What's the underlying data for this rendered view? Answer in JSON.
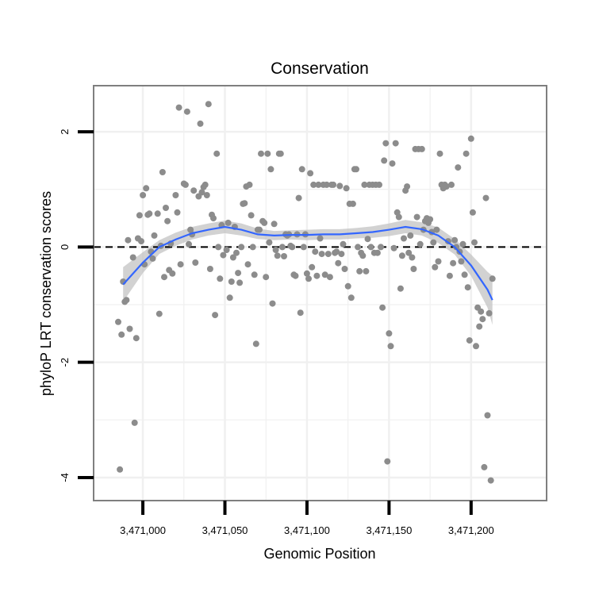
{
  "chart_data": {
    "type": "scatter",
    "title": "Conservation",
    "xlabel": "Genomic Position",
    "ylabel": "phyloP LRT conservation scores",
    "xlim": [
      3470970,
      3471246
    ],
    "ylim": [
      -4.4,
      2.8
    ],
    "x_ticks": [
      3471000,
      3471050,
      3471100,
      3471150,
      3471200
    ],
    "x_tick_labels": [
      "3,471,000",
      "3,471,050",
      "3,471,100",
      "3,471,150",
      "3,471,200"
    ],
    "y_ticks": [
      -4,
      -2,
      0,
      2
    ],
    "y_tick_labels": [
      "-4",
      "-2",
      "0",
      "2"
    ],
    "reference_line": 0,
    "grid": true,
    "colors": {
      "points": "#8c8c8c",
      "smooth": "#3366ff",
      "band": "#bfbfbf",
      "frame": "#7f7f7f"
    },
    "points": [
      [
        3470985,
        -1.3
      ],
      [
        3470986,
        -3.86
      ],
      [
        3470987,
        -1.52
      ],
      [
        3470988,
        -0.6
      ],
      [
        3470989,
        -0.95
      ],
      [
        3470990,
        -0.92
      ],
      [
        3470991,
        0.12
      ],
      [
        3470992,
        -1.42
      ],
      [
        3470994,
        -0.18
      ],
      [
        3470995,
        -3.05
      ],
      [
        3470996,
        -1.58
      ],
      [
        3470997,
        0.15
      ],
      [
        3470998,
        0.55
      ],
      [
        3470999,
        0.1
      ],
      [
        3471000,
        0.9
      ],
      [
        3471001,
        -0.3
      ],
      [
        3471002,
        1.02
      ],
      [
        3471003,
        0.56
      ],
      [
        3471004,
        0.58
      ],
      [
        3471005,
        -0.08
      ],
      [
        3471006,
        -0.2
      ],
      [
        3471007,
        0.2
      ],
      [
        3471009,
        0.58
      ],
      [
        3471010,
        -1.16
      ],
      [
        3471011,
        0.02
      ],
      [
        3471012,
        1.3
      ],
      [
        3471013,
        -0.52
      ],
      [
        3471014,
        0.68
      ],
      [
        3471015,
        0.45
      ],
      [
        3471016,
        -0.4
      ],
      [
        3471017,
        0.06
      ],
      [
        3471018,
        -0.46
      ],
      [
        3471020,
        0.9
      ],
      [
        3471021,
        0.6
      ],
      [
        3471022,
        2.42
      ],
      [
        3471023,
        -0.3
      ],
      [
        3471025,
        1.1
      ],
      [
        3471026,
        1.08
      ],
      [
        3471027,
        2.35
      ],
      [
        3471028,
        0.05
      ],
      [
        3471029,
        0.3
      ],
      [
        3471030,
        0.22
      ],
      [
        3471031,
        0.98
      ],
      [
        3471032,
        -0.27
      ],
      [
        3471034,
        0.88
      ],
      [
        3471035,
        2.14
      ],
      [
        3471036,
        0.95
      ],
      [
        3471037,
        1.04
      ],
      [
        3471038,
        1.08
      ],
      [
        3471039,
        0.9
      ],
      [
        3471040,
        2.48
      ],
      [
        3471041,
        -0.38
      ],
      [
        3471042,
        0.56
      ],
      [
        3471043,
        0.5
      ],
      [
        3471044,
        -1.18
      ],
      [
        3471045,
        1.62
      ],
      [
        3471046,
        0.0
      ],
      [
        3471047,
        -0.55
      ],
      [
        3471048,
        0.38
      ],
      [
        3471049,
        -0.14
      ],
      [
        3471051,
        -0.05
      ],
      [
        3471052,
        0.42
      ],
      [
        3471053,
        -0.88
      ],
      [
        3471054,
        -0.6
      ],
      [
        3471055,
        -0.18
      ],
      [
        3471056,
        0.35
      ],
      [
        3471057,
        -0.1
      ],
      [
        3471058,
        -0.45
      ],
      [
        3471059,
        -0.62
      ],
      [
        3471060,
        0.0
      ],
      [
        3471061,
        0.75
      ],
      [
        3471062,
        0.76
      ],
      [
        3471063,
        1.05
      ],
      [
        3471064,
        -0.3
      ],
      [
        3471065,
        1.08
      ],
      [
        3471066,
        0.55
      ],
      [
        3471067,
        0.0
      ],
      [
        3471068,
        -0.48
      ],
      [
        3471069,
        -1.68
      ],
      [
        3471070,
        0.3
      ],
      [
        3471071,
        0.3
      ],
      [
        3471072,
        1.62
      ],
      [
        3471073,
        0.45
      ],
      [
        3471074,
        0.42
      ],
      [
        3471075,
        -0.52
      ],
      [
        3471076,
        1.62
      ],
      [
        3471077,
        0.08
      ],
      [
        3471078,
        1.35
      ],
      [
        3471079,
        -0.98
      ],
      [
        3471080,
        0.4
      ],
      [
        3471081,
        -0.05
      ],
      [
        3471082,
        -0.15
      ],
      [
        3471083,
        1.62
      ],
      [
        3471084,
        1.62
      ],
      [
        3471085,
        0.0
      ],
      [
        3471086,
        -0.16
      ],
      [
        3471087,
        0.22
      ],
      [
        3471088,
        0.2
      ],
      [
        3471089,
        0.22
      ],
      [
        3471090,
        0.02
      ],
      [
        3471091,
        0.0
      ],
      [
        3471092,
        -0.48
      ],
      [
        3471093,
        -0.5
      ],
      [
        3471094,
        0.22
      ],
      [
        3471095,
        0.85
      ],
      [
        3471096,
        -1.14
      ],
      [
        3471097,
        1.35
      ],
      [
        3471098,
        0.0
      ],
      [
        3471099,
        0.22
      ],
      [
        3471100,
        -0.46
      ],
      [
        3471101,
        -0.55
      ],
      [
        3471102,
        1.28
      ],
      [
        3471103,
        -0.35
      ],
      [
        3471104,
        1.08
      ],
      [
        3471105,
        -0.08
      ],
      [
        3471106,
        -0.5
      ],
      [
        3471107,
        1.08
      ],
      [
        3471108,
        0.15
      ],
      [
        3471109,
        -0.12
      ],
      [
        3471110,
        1.08
      ],
      [
        3471111,
        -0.48
      ],
      [
        3471112,
        1.08
      ],
      [
        3471113,
        -0.12
      ],
      [
        3471114,
        -0.52
      ],
      [
        3471115,
        1.08
      ],
      [
        3471116,
        1.08
      ],
      [
        3471117,
        -0.1
      ],
      [
        3471118,
        -0.08
      ],
      [
        3471119,
        -0.28
      ],
      [
        3471120,
        1.06
      ],
      [
        3471121,
        -0.12
      ],
      [
        3471122,
        0.05
      ],
      [
        3471123,
        -0.38
      ],
      [
        3471124,
        1.02
      ],
      [
        3471125,
        -0.68
      ],
      [
        3471126,
        0.75
      ],
      [
        3471127,
        -0.88
      ],
      [
        3471128,
        0.75
      ],
      [
        3471129,
        1.35
      ],
      [
        3471130,
        1.35
      ],
      [
        3471131,
        0.0
      ],
      [
        3471132,
        -0.42
      ],
      [
        3471133,
        -0.1
      ],
      [
        3471134,
        -0.15
      ],
      [
        3471135,
        1.08
      ],
      [
        3471136,
        -0.42
      ],
      [
        3471137,
        0.14
      ],
      [
        3471138,
        1.08
      ],
      [
        3471139,
        0.0
      ],
      [
        3471140,
        1.08
      ],
      [
        3471141,
        -0.1
      ],
      [
        3471142,
        1.08
      ],
      [
        3471143,
        -0.1
      ],
      [
        3471144,
        1.08
      ],
      [
        3471145,
        0.0
      ],
      [
        3471146,
        -1.05
      ],
      [
        3471147,
        1.5
      ],
      [
        3471148,
        1.8
      ],
      [
        3471149,
        -3.72
      ],
      [
        3471150,
        -1.5
      ],
      [
        3471151,
        -1.72
      ],
      [
        3471152,
        1.45
      ],
      [
        3471153,
        -0.02
      ],
      [
        3471154,
        1.8
      ],
      [
        3471155,
        0.6
      ],
      [
        3471156,
        0.52
      ],
      [
        3471157,
        -0.72
      ],
      [
        3471158,
        -0.15
      ],
      [
        3471159,
        0.15
      ],
      [
        3471160,
        0.98
      ],
      [
        3471161,
        1.05
      ],
      [
        3471162,
        -0.1
      ],
      [
        3471163,
        0.2
      ],
      [
        3471164,
        -0.18
      ],
      [
        3471165,
        -0.38
      ],
      [
        3471166,
        1.7
      ],
      [
        3471167,
        0.52
      ],
      [
        3471168,
        1.7
      ],
      [
        3471169,
        0.05
      ],
      [
        3471170,
        1.7
      ],
      [
        3471171,
        0.3
      ],
      [
        3471172,
        0.45
      ],
      [
        3471173,
        0.5
      ],
      [
        3471174,
        0.42
      ],
      [
        3471175,
        0.48
      ],
      [
        3471176,
        0.26
      ],
      [
        3471177,
        0.08
      ],
      [
        3471178,
        -0.35
      ],
      [
        3471179,
        0.3
      ],
      [
        3471180,
        -0.25
      ],
      [
        3471181,
        1.62
      ],
      [
        3471182,
        1.08
      ],
      [
        3471183,
        1.02
      ],
      [
        3471184,
        1.08
      ],
      [
        3471185,
        1.05
      ],
      [
        3471186,
        0.1
      ],
      [
        3471187,
        -0.5
      ],
      [
        3471188,
        1.08
      ],
      [
        3471189,
        -0.28
      ],
      [
        3471190,
        0.12
      ],
      [
        3471191,
        0.0
      ],
      [
        3471192,
        1.38
      ],
      [
        3471193,
        -0.08
      ],
      [
        3471194,
        -0.25
      ],
      [
        3471195,
        0.05
      ],
      [
        3471196,
        -0.48
      ],
      [
        3471197,
        1.62
      ],
      [
        3471198,
        -0.7
      ],
      [
        3471199,
        -1.62
      ],
      [
        3471200,
        1.88
      ],
      [
        3471201,
        0.6
      ],
      [
        3471202,
        0.08
      ],
      [
        3471203,
        -1.72
      ],
      [
        3471204,
        -1.05
      ],
      [
        3471205,
        -1.38
      ],
      [
        3471206,
        -1.12
      ],
      [
        3471207,
        -1.25
      ],
      [
        3471208,
        -3.82
      ],
      [
        3471209,
        0.85
      ],
      [
        3471210,
        -2.92
      ],
      [
        3471211,
        -1.15
      ],
      [
        3471212,
        -4.05
      ],
      [
        3471213,
        -0.55
      ]
    ],
    "smooth": {
      "x": [
        3470988,
        3471000,
        3471010,
        3471020,
        3471030,
        3471040,
        3471050,
        3471060,
        3471070,
        3471080,
        3471090,
        3471100,
        3471110,
        3471120,
        3471130,
        3471140,
        3471150,
        3471160,
        3471170,
        3471180,
        3471190,
        3471200,
        3471210,
        3471213
      ],
      "y": [
        -0.65,
        -0.27,
        0.0,
        0.13,
        0.24,
        0.3,
        0.35,
        0.3,
        0.22,
        0.2,
        0.21,
        0.21,
        0.22,
        0.22,
        0.24,
        0.26,
        0.3,
        0.35,
        0.31,
        0.2,
        0.0,
        -0.32,
        -0.74,
        -0.92
      ],
      "lower": [
        -0.95,
        -0.45,
        -0.12,
        0.02,
        0.13,
        0.2,
        0.24,
        0.2,
        0.14,
        0.12,
        0.13,
        0.12,
        0.13,
        0.13,
        0.15,
        0.16,
        0.19,
        0.24,
        0.2,
        0.07,
        -0.13,
        -0.5,
        -1.05,
        -1.35
      ],
      "upper": [
        -0.35,
        -0.09,
        0.12,
        0.25,
        0.35,
        0.41,
        0.46,
        0.41,
        0.32,
        0.28,
        0.29,
        0.3,
        0.31,
        0.31,
        0.33,
        0.36,
        0.41,
        0.47,
        0.43,
        0.34,
        0.14,
        -0.13,
        -0.43,
        -0.5
      ]
    }
  }
}
